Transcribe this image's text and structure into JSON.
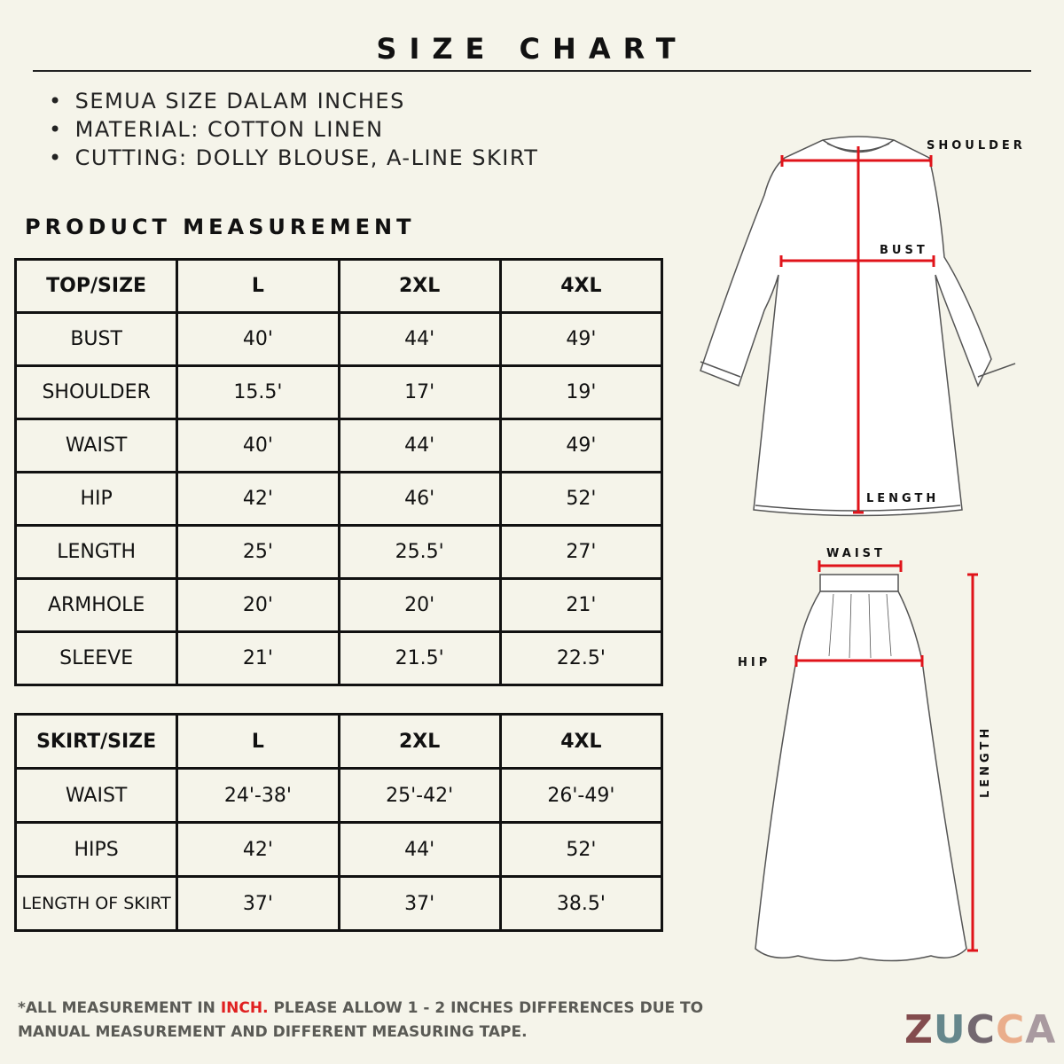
{
  "title": "SIZE CHART",
  "notes": [
    "SEMUA SIZE DALAM INCHES",
    "MATERIAL:  COTTON LINEN",
    "CUTTING: DOLLY BLOUSE, A-LINE SKIRT"
  ],
  "section_title": "PRODUCT MEASUREMENT",
  "top_table": {
    "headers": [
      "TOP/SIZE",
      "L",
      "2XL",
      "4XL"
    ],
    "rows": [
      [
        "BUST",
        "40'",
        "44'",
        "49'"
      ],
      [
        "SHOULDER",
        "15.5'",
        "17'",
        "19'"
      ],
      [
        "WAIST",
        "40'",
        "44'",
        "49'"
      ],
      [
        "HIP",
        "42'",
        "46'",
        "52'"
      ],
      [
        "LENGTH",
        "25'",
        "25.5'",
        "27'"
      ],
      [
        "ARMHOLE",
        "20'",
        "20'",
        "21'"
      ],
      [
        "SLEEVE",
        "21'",
        "21.5'",
        "22.5'"
      ]
    ]
  },
  "skirt_table": {
    "headers": [
      "SKIRT/SIZE",
      "L",
      "2XL",
      "4XL"
    ],
    "rows": [
      [
        "WAIST",
        "24'-38'",
        "25'-42'",
        "26'-49'"
      ],
      [
        "HIPS",
        "42'",
        "44'",
        "52'"
      ],
      [
        "LENGTH OF SKIRT",
        "37'",
        "37'",
        "38.5'"
      ]
    ]
  },
  "diagram_labels": {
    "shoulder": "SHOULDER",
    "bust": "BUST",
    "length_top": "LENGTH",
    "waist": "WAIST",
    "hip": "HIP",
    "length_skirt": "LENGTH"
  },
  "footer": {
    "part1": "*ALL MEASUREMENT IN ",
    "highlight": "INCH.",
    "part2": " PLEASE ALLOW 1 - 2 INCHES DIFFERENCES DUE TO MANUAL MEASUREMENT AND DIFFERENT MEASURING TAPE."
  },
  "logo": {
    "letters": [
      "Z",
      "U",
      "C",
      "C",
      "A"
    ],
    "colors": [
      "#834c4e",
      "#66878c",
      "#736870",
      "#eaae8c",
      "#a99aa0"
    ]
  },
  "colors": {
    "background": "#f5f4ea",
    "measure_line": "#e0131a",
    "highlight": "#e02020"
  }
}
